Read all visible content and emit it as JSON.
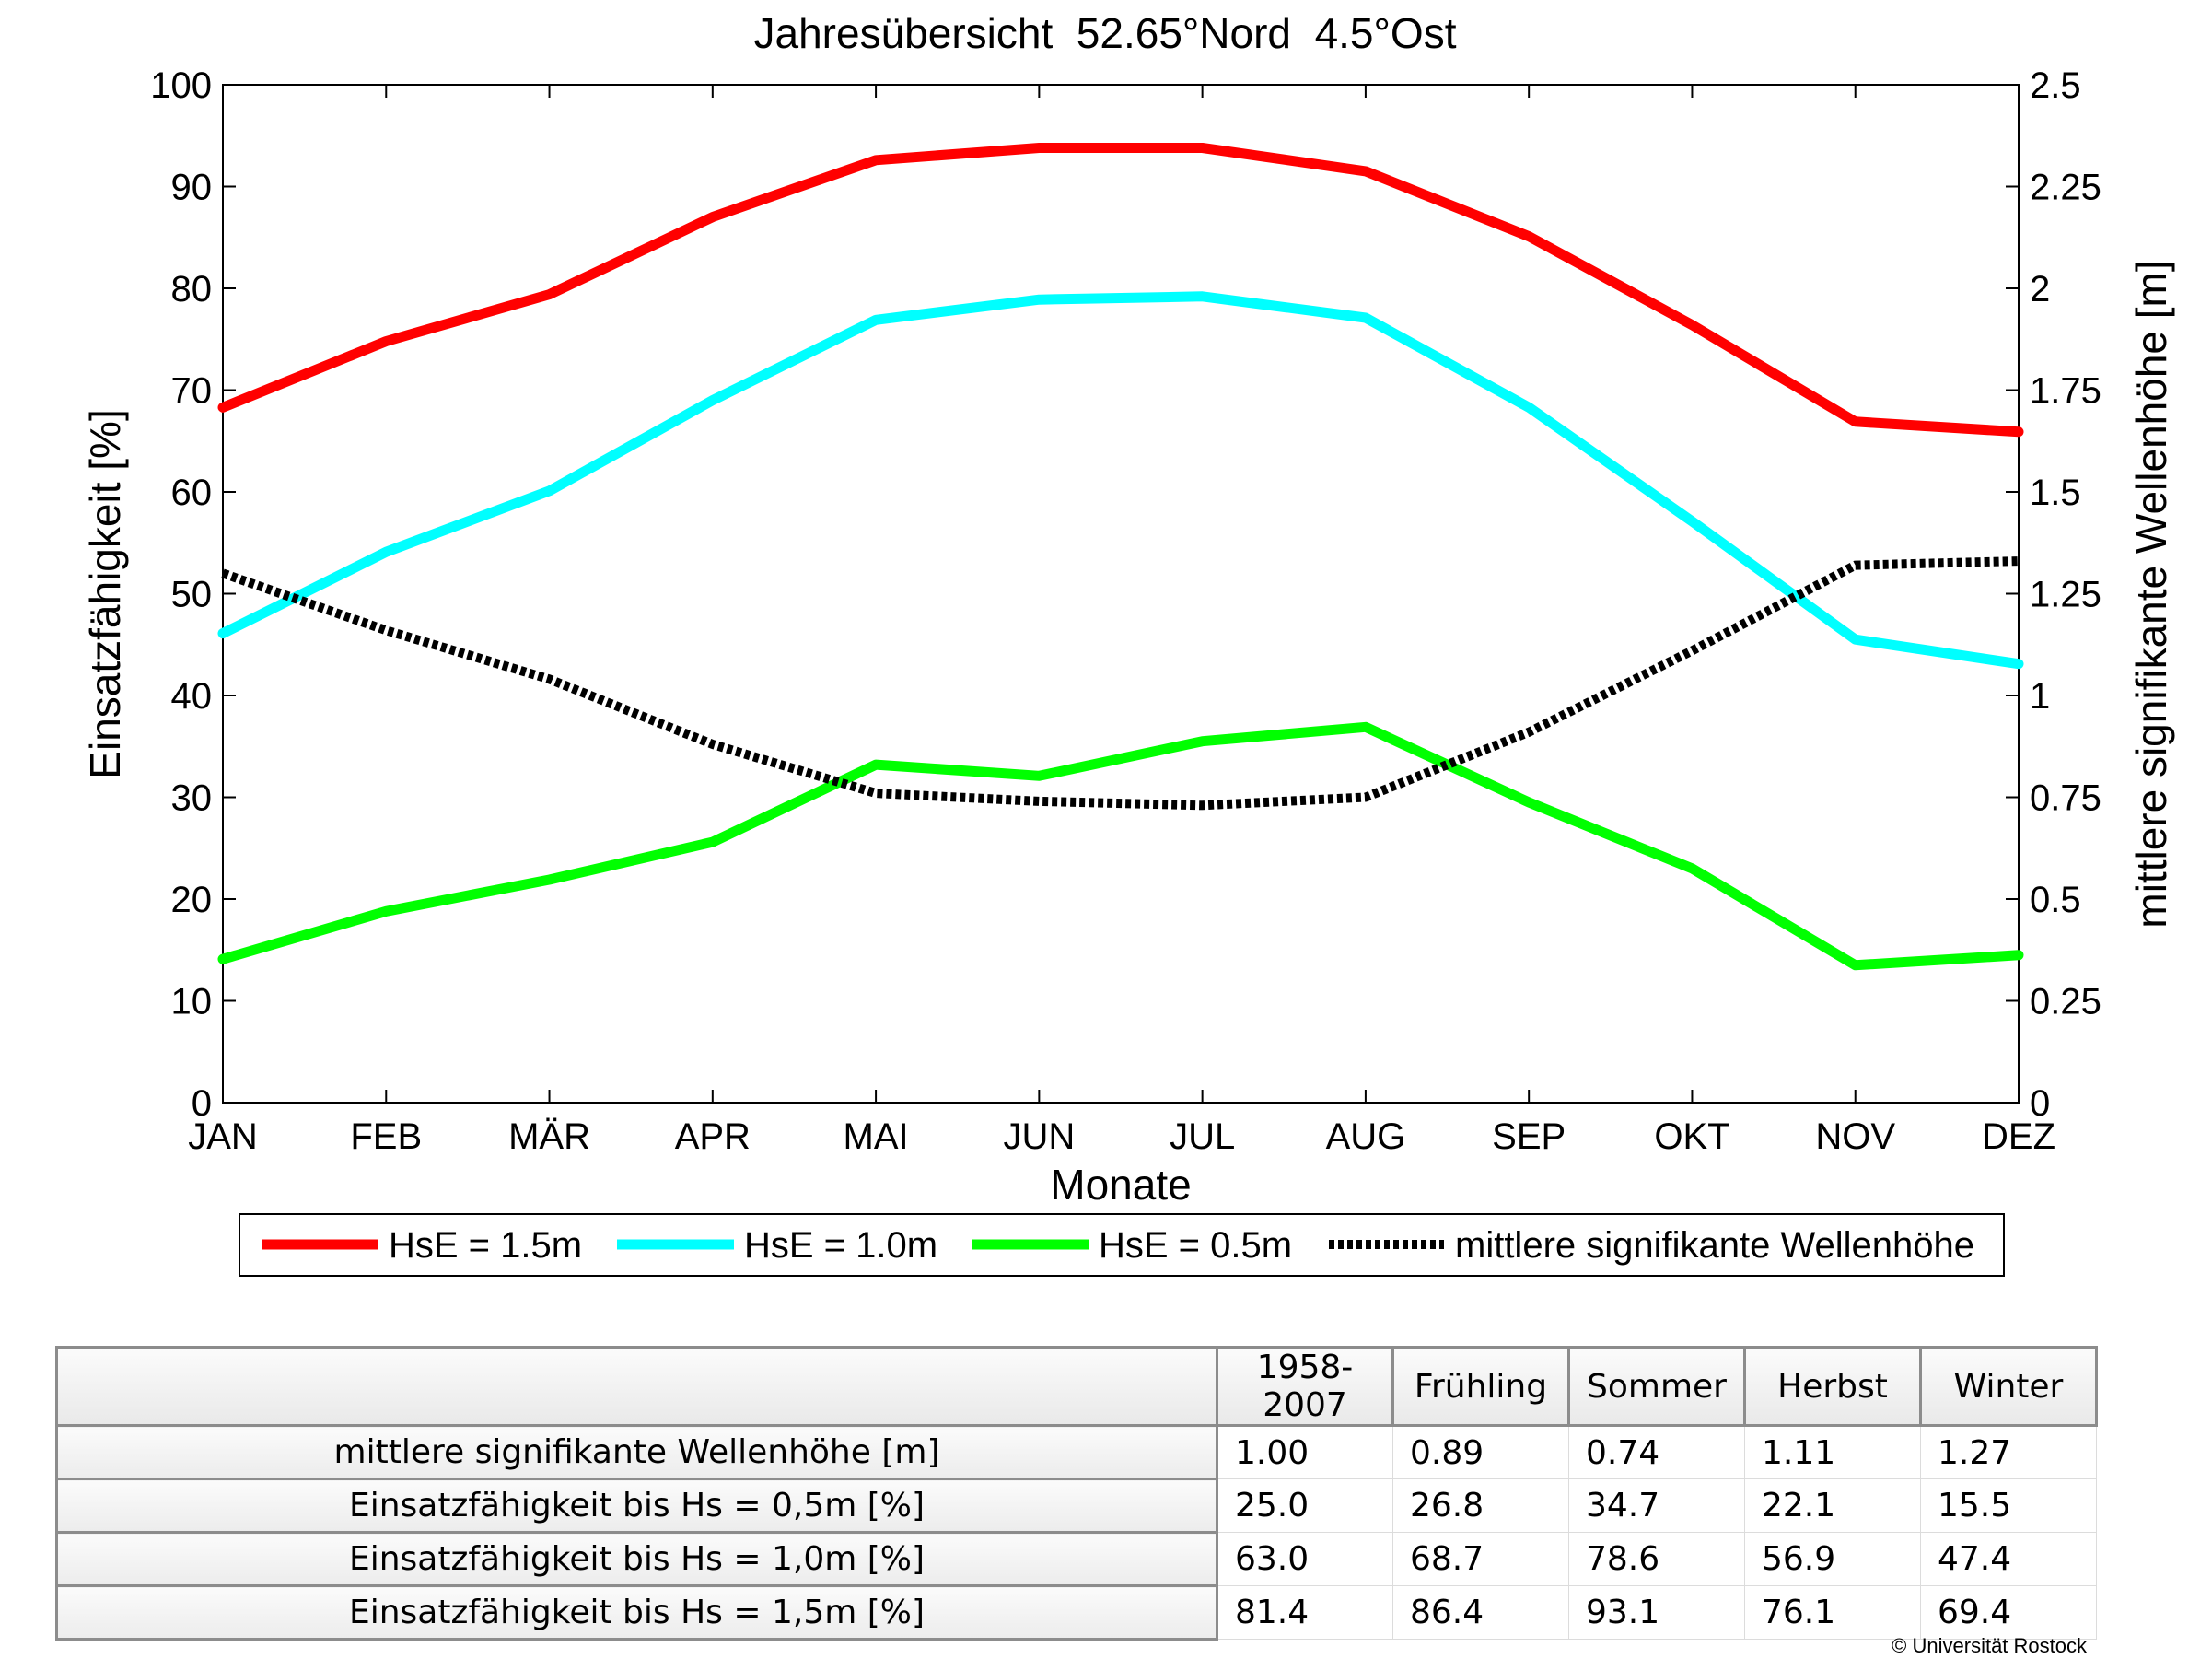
{
  "chart_data": {
    "type": "line",
    "title": "Jahresübersicht  52.65°Nord  4.5°Ost",
    "xlabel": "Monate",
    "ylabel": "Einsatzfähigkeit [%]",
    "ylabel_right": "mittlere signifikante Wellenhöhe [m]",
    "categories": [
      "JAN",
      "FEB",
      "MÄR",
      "APR",
      "MAI",
      "JUN",
      "JUL",
      "AUG",
      "SEP",
      "OKT",
      "NOV",
      "DEZ"
    ],
    "ylim": [
      0,
      100
    ],
    "ylim_right": [
      0,
      2.5
    ],
    "yticks": [
      "0",
      "10",
      "20",
      "30",
      "40",
      "50",
      "60",
      "70",
      "80",
      "90",
      "100"
    ],
    "yticks_right": [
      "0",
      "0.25",
      "0.5",
      "0.75",
      "1",
      "1.25",
      "1.5",
      "1.75",
      "2",
      "2.25",
      "2.5"
    ],
    "grid": false,
    "legend_position": "bottom",
    "series": [
      {
        "name": "HsE = 1.5m",
        "axis": "left",
        "color": "#ff0000",
        "style": "solid",
        "values": [
          68.3,
          74.8,
          79.4,
          87.0,
          92.6,
          93.8,
          93.8,
          91.5,
          85.1,
          76.4,
          66.9,
          65.9
        ]
      },
      {
        "name": "HsE = 1.0m",
        "axis": "left",
        "color": "#00ffff",
        "style": "solid",
        "values": [
          46.1,
          54.1,
          60.1,
          69.0,
          76.9,
          78.9,
          79.2,
          77.1,
          68.3,
          57.1,
          45.5,
          43.1
        ]
      },
      {
        "name": "HsE = 0.5m",
        "axis": "left",
        "color": "#00ff00",
        "style": "solid",
        "values": [
          14.1,
          18.8,
          21.9,
          25.6,
          33.2,
          32.1,
          35.5,
          36.9,
          29.5,
          23.0,
          13.5,
          14.5
        ]
      },
      {
        "name": "mittlere signifikante Wellenhöhe",
        "axis": "right",
        "color": "#000000",
        "style": "dotted",
        "values": [
          1.3,
          1.16,
          1.04,
          0.88,
          0.76,
          0.74,
          0.73,
          0.75,
          0.91,
          1.11,
          1.32,
          1.33
        ]
      }
    ]
  },
  "table": {
    "headers": [
      "",
      "1958-2007",
      "Frühling",
      "Sommer",
      "Herbst",
      "Winter"
    ],
    "rows": [
      {
        "label": "mittlere signifikante Wellenhöhe [m]",
        "values": [
          "1.00",
          "0.89",
          "0.74",
          "1.11",
          "1.27"
        ]
      },
      {
        "label": "Einsatzfähigkeit bis Hs = 0,5m [%]",
        "values": [
          "25.0",
          "26.8",
          "34.7",
          "22.1",
          "15.5"
        ]
      },
      {
        "label": "Einsatzfähigkeit bis Hs = 1,0m [%]",
        "values": [
          "63.0",
          "68.7",
          "78.6",
          "56.9",
          "47.4"
        ]
      },
      {
        "label": "Einsatzfähigkeit bis Hs = 1,5m [%]",
        "values": [
          "81.4",
          "86.4",
          "93.1",
          "76.1",
          "69.4"
        ]
      }
    ]
  },
  "footer": {
    "copyright": "© Universität Rostock"
  }
}
